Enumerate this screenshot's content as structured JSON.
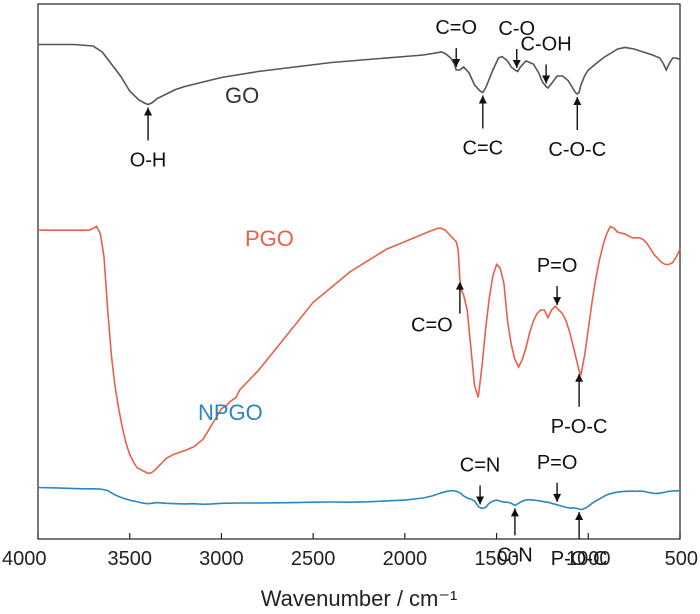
{
  "chart_data": {
    "type": "line",
    "title": "",
    "xlabel": "Wavenumber / cm⁻¹",
    "ylabel": "",
    "xlim": [
      4000,
      500
    ],
    "x_reversed": true,
    "x_ticks": [
      4000,
      3500,
      3000,
      2500,
      2000,
      1500,
      1000,
      500
    ],
    "y_ticks_shown": false,
    "grid": false,
    "series": [
      {
        "name": "GO",
        "color": "#555555",
        "label_color": "#333333",
        "x": [
          4000,
          3800,
          3700,
          3650,
          3600,
          3550,
          3500,
          3450,
          3420,
          3400,
          3380,
          3350,
          3300,
          3250,
          3200,
          3100,
          3000,
          2900,
          2800,
          2600,
          2400,
          2200,
          2000,
          1900,
          1850,
          1800,
          1780,
          1750,
          1730,
          1720,
          1700,
          1680,
          1650,
          1620,
          1590,
          1575,
          1560,
          1520,
          1490,
          1470,
          1440,
          1420,
          1400,
          1385,
          1370,
          1340,
          1300,
          1270,
          1250,
          1230,
          1220,
          1200,
          1170,
          1140,
          1110,
          1080,
          1070,
          1060,
          1050,
          1040,
          1020,
          1000,
          960,
          920,
          880,
          840,
          800,
          750,
          700,
          650,
          610,
          590,
          575,
          560,
          540,
          520,
          500
        ],
        "y": [
          0.885,
          0.885,
          0.88,
          0.86,
          0.82,
          0.78,
          0.73,
          0.7,
          0.69,
          0.685,
          0.69,
          0.705,
          0.72,
          0.735,
          0.745,
          0.76,
          0.775,
          0.785,
          0.795,
          0.81,
          0.825,
          0.835,
          0.845,
          0.85,
          0.855,
          0.86,
          0.855,
          0.84,
          0.82,
          0.8,
          0.8,
          0.81,
          0.79,
          0.75,
          0.73,
          0.725,
          0.74,
          0.8,
          0.84,
          0.845,
          0.83,
          0.81,
          0.8,
          0.795,
          0.81,
          0.83,
          0.82,
          0.79,
          0.76,
          0.745,
          0.74,
          0.755,
          0.78,
          0.78,
          0.765,
          0.735,
          0.725,
          0.72,
          0.725,
          0.75,
          0.78,
          0.8,
          0.82,
          0.84,
          0.855,
          0.87,
          0.875,
          0.87,
          0.86,
          0.85,
          0.84,
          0.82,
          0.8,
          0.82,
          0.84,
          0.84,
          0.835
        ]
      },
      {
        "name": "PGO",
        "color": "#e8604c",
        "label_color": "#e8604c",
        "x": [
          4000,
          3800,
          3720,
          3680,
          3660,
          3640,
          3620,
          3600,
          3580,
          3560,
          3540,
          3520,
          3500,
          3480,
          3460,
          3440,
          3420,
          3400,
          3380,
          3360,
          3340,
          3320,
          3300,
          3280,
          3260,
          3230,
          3200,
          3150,
          3100,
          3050,
          3000,
          2970,
          2950,
          2920,
          2900,
          2880,
          2860,
          2800,
          2700,
          2600,
          2500,
          2400,
          2300,
          2200,
          2100,
          2000,
          1900,
          1850,
          1820,
          1800,
          1780,
          1760,
          1740,
          1720,
          1710,
          1700,
          1690,
          1680,
          1660,
          1640,
          1620,
          1600,
          1580,
          1560,
          1540,
          1520,
          1500,
          1480,
          1460,
          1440,
          1420,
          1400,
          1380,
          1360,
          1340,
          1320,
          1300,
          1280,
          1260,
          1240,
          1220,
          1200,
          1180,
          1160,
          1140,
          1120,
          1100,
          1080,
          1060,
          1050,
          1040,
          1020,
          1000,
          980,
          960,
          940,
          920,
          900,
          880,
          860,
          840,
          800,
          760,
          720,
          700,
          680,
          660,
          640,
          620,
          600,
          580,
          560,
          540,
          520,
          500
        ],
        "y": [
          0.71,
          0.71,
          0.71,
          0.72,
          0.7,
          0.64,
          0.5,
          0.38,
          0.3,
          0.24,
          0.19,
          0.15,
          0.12,
          0.1,
          0.085,
          0.08,
          0.075,
          0.07,
          0.072,
          0.08,
          0.09,
          0.1,
          0.11,
          0.115,
          0.12,
          0.125,
          0.13,
          0.14,
          0.16,
          0.2,
          0.24,
          0.25,
          0.26,
          0.27,
          0.29,
          0.3,
          0.31,
          0.34,
          0.4,
          0.46,
          0.52,
          0.56,
          0.6,
          0.63,
          0.66,
          0.68,
          0.7,
          0.71,
          0.715,
          0.715,
          0.71,
          0.7,
          0.69,
          0.68,
          0.66,
          0.58,
          0.55,
          0.54,
          0.5,
          0.4,
          0.3,
          0.27,
          0.35,
          0.45,
          0.53,
          0.59,
          0.62,
          0.61,
          0.57,
          0.47,
          0.41,
          0.37,
          0.35,
          0.37,
          0.4,
          0.44,
          0.47,
          0.49,
          0.5,
          0.5,
          0.48,
          0.5,
          0.51,
          0.5,
          0.49,
          0.47,
          0.44,
          0.4,
          0.36,
          0.34,
          0.33,
          0.38,
          0.45,
          0.52,
          0.58,
          0.63,
          0.67,
          0.7,
          0.72,
          0.715,
          0.705,
          0.7,
          0.69,
          0.69,
          0.685,
          0.675,
          0.66,
          0.645,
          0.635,
          0.625,
          0.62,
          0.62,
          0.625,
          0.64,
          0.66
        ]
      },
      {
        "name": "NPGO",
        "color": "#2b86c3",
        "label_color": "#2b86c3",
        "x": [
          4000,
          3900,
          3800,
          3750,
          3700,
          3660,
          3620,
          3580,
          3540,
          3500,
          3480,
          3460,
          3440,
          3420,
          3400,
          3380,
          3350,
          3300,
          3250,
          3200,
          3150,
          3100,
          3050,
          3000,
          2900,
          2800,
          2700,
          2600,
          2500,
          2400,
          2300,
          2200,
          2100,
          2000,
          1900,
          1850,
          1800,
          1770,
          1740,
          1720,
          1700,
          1680,
          1660,
          1640,
          1620,
          1600,
          1580,
          1560,
          1540,
          1520,
          1500,
          1480,
          1460,
          1440,
          1420,
          1400,
          1380,
          1360,
          1340,
          1320,
          1300,
          1280,
          1260,
          1240,
          1220,
          1200,
          1180,
          1160,
          1140,
          1120,
          1100,
          1080,
          1060,
          1040,
          1020,
          1000,
          980,
          960,
          940,
          920,
          900,
          880,
          860,
          840,
          820,
          800,
          780,
          760,
          740,
          720,
          700,
          680,
          660,
          640,
          620,
          600,
          580,
          560,
          540,
          520,
          500
        ],
        "y": [
          0.25,
          0.248,
          0.245,
          0.244,
          0.244,
          0.243,
          0.235,
          0.215,
          0.2,
          0.19,
          0.185,
          0.183,
          0.178,
          0.175,
          0.173,
          0.175,
          0.178,
          0.175,
          0.173,
          0.172,
          0.173,
          0.17,
          0.172,
          0.175,
          0.176,
          0.176,
          0.177,
          0.178,
          0.18,
          0.181,
          0.18,
          0.182,
          0.186,
          0.19,
          0.2,
          0.21,
          0.225,
          0.232,
          0.235,
          0.232,
          0.225,
          0.21,
          0.2,
          0.195,
          0.185,
          0.16,
          0.15,
          0.155,
          0.175,
          0.185,
          0.19,
          0.185,
          0.18,
          0.18,
          0.175,
          0.165,
          0.175,
          0.185,
          0.19,
          0.192,
          0.19,
          0.188,
          0.185,
          0.182,
          0.18,
          0.175,
          0.17,
          0.165,
          0.16,
          0.155,
          0.152,
          0.153,
          0.15,
          0.145,
          0.15,
          0.16,
          0.175,
          0.185,
          0.195,
          0.205,
          0.215,
          0.22,
          0.225,
          0.228,
          0.23,
          0.232,
          0.232,
          0.233,
          0.232,
          0.233,
          0.232,
          0.228,
          0.225,
          0.222,
          0.222,
          0.225,
          0.228,
          0.232,
          0.234,
          0.234,
          0.235
        ]
      }
    ],
    "annotations": [
      {
        "text": "O-H",
        "series": "GO",
        "x": 3400,
        "direction": "up"
      },
      {
        "text": "C=O",
        "series": "GO",
        "x": 1720,
        "direction": "down"
      },
      {
        "text": "C-O",
        "series": "GO",
        "x": 1390,
        "direction": "down"
      },
      {
        "text": "C-OH",
        "series": "GO",
        "x": 1230,
        "direction": "down"
      },
      {
        "text": "C=C",
        "series": "GO",
        "x": 1575,
        "direction": "up"
      },
      {
        "text": "C-O-C",
        "series": "GO",
        "x": 1060,
        "direction": "up"
      },
      {
        "text": "C=O",
        "series": "PGO",
        "x": 1700,
        "direction": "up"
      },
      {
        "text": "P=O",
        "series": "PGO",
        "x": 1170,
        "direction": "down"
      },
      {
        "text": "P-O-C",
        "series": "PGO",
        "x": 1050,
        "direction": "up"
      },
      {
        "text": "C=N",
        "series": "NPGO",
        "x": 1590,
        "direction": "down"
      },
      {
        "text": "C-N",
        "series": "NPGO",
        "x": 1400,
        "direction": "up"
      },
      {
        "text": "P=O",
        "series": "NPGO",
        "x": 1170,
        "direction": "down"
      },
      {
        "text": "P-O-C",
        "series": "NPGO",
        "x": 1050,
        "direction": "up"
      }
    ]
  }
}
